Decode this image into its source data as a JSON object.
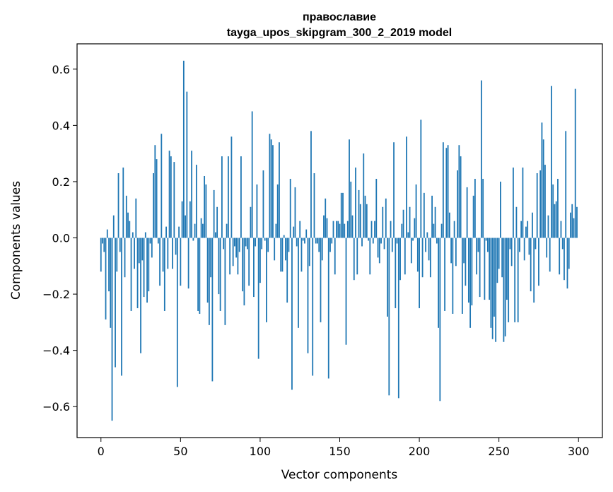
{
  "chart_data": {
    "type": "bar",
    "title": "православие",
    "subtitle": "tayga_upos_skipgram_300_2_2019 model",
    "xlabel": "Vector components",
    "ylabel": "Components values",
    "xlim": [
      -15,
      315
    ],
    "ylim": [
      -0.71,
      0.69
    ],
    "xticks": [
      0,
      50,
      100,
      150,
      200,
      250,
      300
    ],
    "xtick_labels": [
      "0",
      "50",
      "100",
      "150",
      "200",
      "250",
      "300"
    ],
    "yticks": [
      -0.6,
      -0.4,
      -0.2,
      0.0,
      0.2,
      0.4,
      0.6
    ],
    "ytick_labels": [
      "−0.6",
      "−0.4",
      "−0.2",
      "0.0",
      "0.2",
      "0.4",
      "0.6"
    ],
    "grid": false,
    "bar_color": "#1f77b4",
    "x": "indices 0..299",
    "values": [
      -0.12,
      -0.02,
      -0.05,
      -0.29,
      0.03,
      -0.19,
      -0.32,
      -0.65,
      0.08,
      -0.46,
      -0.12,
      0.23,
      -0.05,
      -0.49,
      0.25,
      -0.14,
      0.15,
      0.09,
      0.06,
      -0.26,
      0.02,
      -0.11,
      0.14,
      -0.25,
      -0.09,
      -0.41,
      -0.08,
      -0.21,
      0.02,
      -0.23,
      -0.19,
      -0.02,
      -0.07,
      0.23,
      0.33,
      0.28,
      -0.02,
      -0.17,
      0.37,
      -0.12,
      -0.26,
      0.04,
      -0.11,
      0.31,
      0.29,
      -0.11,
      0.27,
      -0.06,
      -0.53,
      0.04,
      -0.17,
      0.13,
      0.63,
      0.08,
      0.52,
      -0.18,
      0.13,
      0.31,
      -0.01,
      0.05,
      0.26,
      -0.26,
      -0.27,
      0.07,
      0.05,
      0.22,
      0.19,
      -0.23,
      -0.31,
      -0.14,
      -0.51,
      0.17,
      0.02,
      0.11,
      -0.2,
      -0.26,
      0.29,
      -0.04,
      -0.31,
      0.05,
      0.29,
      -0.13,
      0.36,
      -0.1,
      -0.03,
      -0.07,
      -0.13,
      -0.05,
      0.29,
      -0.19,
      -0.24,
      -0.03,
      -0.04,
      -0.17,
      0.11,
      0.45,
      -0.21,
      -0.03,
      0.19,
      -0.43,
      -0.16,
      -0.04,
      0.24,
      -0.01,
      -0.3,
      -0.05,
      0.37,
      0.35,
      0.33,
      -0.08,
      0.05,
      0.19,
      0.34,
      -0.12,
      -0.12,
      0.01,
      -0.08,
      -0.23,
      -0.05,
      0.21,
      -0.54,
      0.04,
      0.18,
      -0.03,
      -0.32,
      0.06,
      -0.12,
      -0.01,
      -0.02,
      0.03,
      -0.41,
      -0.1,
      0.38,
      -0.49,
      0.23,
      -0.02,
      -0.02,
      -0.05,
      -0.3,
      -0.08,
      0.08,
      0.14,
      0.07,
      -0.5,
      -0.05,
      -0.02,
      0.06,
      -0.13,
      0.06,
      0.06,
      0.05,
      0.16,
      0.16,
      0.05,
      -0.38,
      0.06,
      0.35,
      0.2,
      0.08,
      -0.15,
      0.25,
      -0.13,
      0.17,
      0.12,
      -0.03,
      0.3,
      0.15,
      0.12,
      -0.01,
      -0.13,
      0.06,
      -0.02,
      0.06,
      0.21,
      -0.07,
      -0.09,
      -0.02,
      0.11,
      -0.04,
      0.14,
      -0.28,
      -0.56,
      0.06,
      -0.05,
      0.34,
      -0.25,
      -0.02,
      -0.57,
      -0.15,
      0.05,
      0.1,
      -0.13,
      0.36,
      0.02,
      0.11,
      -0.09,
      -0.01,
      0.07,
      0.19,
      -0.12,
      -0.25,
      0.42,
      -0.14,
      0.16,
      -0.05,
      0.02,
      -0.08,
      -0.14,
      0.15,
      0.05,
      0.11,
      -0.02,
      -0.32,
      -0.58,
      0.05,
      0.34,
      -0.26,
      0.32,
      0.33,
      0.09,
      -0.09,
      -0.27,
      0.06,
      -0.1,
      0.24,
      0.33,
      0.29,
      -0.27,
      -0.09,
      -0.17,
      0.18,
      -0.23,
      -0.32,
      -0.24,
      0.15,
      0.21,
      -0.13,
      -0.05,
      -0.21,
      0.56,
      0.21,
      -0.22,
      -0.01,
      -0.05,
      -0.22,
      -0.32,
      -0.36,
      -0.28,
      -0.37,
      -0.16,
      -0.11,
      0.2,
      -0.14,
      -0.37,
      -0.35,
      -0.22,
      -0.3,
      -0.04,
      -0.1,
      0.25,
      -0.3,
      0.11,
      -0.3,
      -0.05,
      0.06,
      0.25,
      -0.08,
      0.04,
      0.06,
      -0.06,
      -0.19,
      0.09,
      -0.23,
      -0.04,
      0.23,
      -0.17,
      0.24,
      0.41,
      0.35,
      0.26,
      -0.07,
      0.08,
      -0.12,
      0.54,
      0.19,
      0.12,
      0.13,
      0.21,
      -0.13,
      0.06,
      -0.04,
      -0.15,
      0.38,
      -0.18,
      -0.11,
      0.09,
      0.12,
      0.07,
      0.53,
      0.11
    ]
  }
}
